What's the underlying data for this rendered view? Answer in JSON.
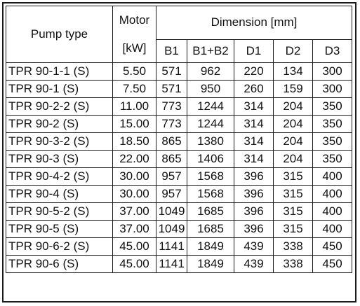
{
  "header": {
    "pump_type": "Pump type",
    "motor": "Motor",
    "motor_unit": "[kW]",
    "dimension": "Dimension [mm]",
    "columns": [
      "B1",
      "B1+B2",
      "D1",
      "D2",
      "D3"
    ]
  },
  "rows": [
    {
      "type": "TPR 90-1-1 (S)",
      "motor": "5.50",
      "b1": "571",
      "b1b2": "962",
      "d1": "220",
      "d2": "134",
      "d3": "300"
    },
    {
      "type": "TPR 90-1 (S)",
      "motor": "7.50",
      "b1": "571",
      "b1b2": "950",
      "d1": "260",
      "d2": "159",
      "d3": "300"
    },
    {
      "type": "TPR 90-2-2 (S)",
      "motor": "11.00",
      "b1": "773",
      "b1b2": "1244",
      "d1": "314",
      "d2": "204",
      "d3": "350"
    },
    {
      "type": "TPR 90-2 (S)",
      "motor": "15.00",
      "b1": "773",
      "b1b2": "1244",
      "d1": "314",
      "d2": "204",
      "d3": "350"
    },
    {
      "type": "TPR 90-3-2 (S)",
      "motor": "18.50",
      "b1": "865",
      "b1b2": "1380",
      "d1": "314",
      "d2": "204",
      "d3": "350"
    },
    {
      "type": "TPR 90-3 (S)",
      "motor": "22.00",
      "b1": "865",
      "b1b2": "1406",
      "d1": "314",
      "d2": "204",
      "d3": "350"
    },
    {
      "type": "TPR 90-4-2 (S)",
      "motor": "30.00",
      "b1": "957",
      "b1b2": "1568",
      "d1": "396",
      "d2": "315",
      "d3": "400"
    },
    {
      "type": "TPR 90-4 (S)",
      "motor": "30.00",
      "b1": "957",
      "b1b2": "1568",
      "d1": "396",
      "d2": "315",
      "d3": "400"
    },
    {
      "type": "TPR 90-5-2 (S)",
      "motor": "37.00",
      "b1": "1049",
      "b1b2": "1685",
      "d1": "396",
      "d2": "315",
      "d3": "400"
    },
    {
      "type": "TPR 90-5 (S)",
      "motor": "37.00",
      "b1": "1049",
      "b1b2": "1685",
      "d1": "396",
      "d2": "315",
      "d3": "400"
    },
    {
      "type": "TPR 90-6-2 (S)",
      "motor": "45.00",
      "b1": "1141",
      "b1b2": "1849",
      "d1": "439",
      "d2": "338",
      "d3": "450"
    },
    {
      "type": "TPR 90-6 (S)",
      "motor": "45.00",
      "b1": "1141",
      "b1b2": "1849",
      "d1": "439",
      "d2": "338",
      "d3": "450"
    }
  ]
}
